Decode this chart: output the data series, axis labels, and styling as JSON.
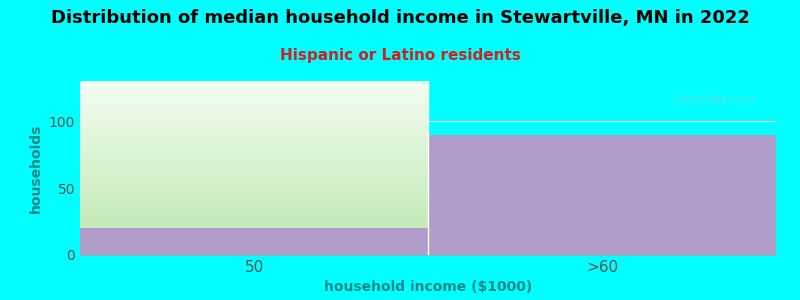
{
  "title": "Distribution of median household income in Stewartville, MN in 2022",
  "subtitle": "Hispanic or Latino residents",
  "xlabel": "household income ($1000)",
  "ylabel": "households",
  "categories": [
    "50",
    ">60"
  ],
  "purple_values": [
    20,
    90
  ],
  "green_values": [
    115,
    0
  ],
  "ylim": [
    0,
    130
  ],
  "yticks": [
    0,
    50,
    100
  ],
  "background_color": "#00FFFF",
  "purple_color": "#B09CC8",
  "green_color_bottom": "#C5EAB8",
  "green_color_top": "#F5FFF5",
  "title_fontsize": 13,
  "subtitle_fontsize": 11,
  "subtitle_color": "#CC2222",
  "axis_label_color": "#008888",
  "tick_color": "#555555",
  "watermark": "City-Data.com",
  "grid_color": "#FFCCFF",
  "spine_color": "#AAAAAA"
}
